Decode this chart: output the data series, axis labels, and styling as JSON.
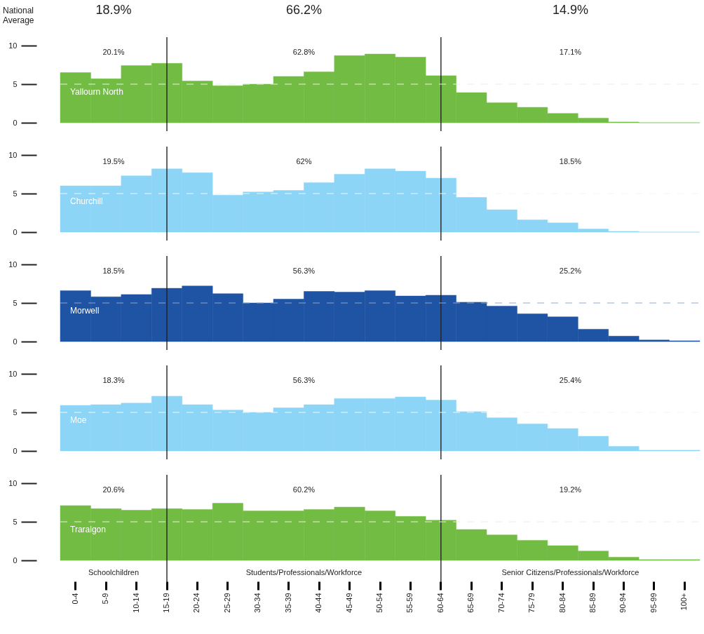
{
  "chart_data": [
    {
      "type": "bar",
      "title": "National Average",
      "categories": [
        "0-4",
        "5-9",
        "10-14",
        "15-19",
        "20-24",
        "25-29",
        "30-34",
        "35-39",
        "40-44",
        "45-49",
        "50-54",
        "55-59",
        "60-64",
        "65-69",
        "70-74",
        "75-79",
        "80-84",
        "85-89",
        "90-94",
        "95-99",
        "100+"
      ],
      "series": [
        {
          "name": "Yallourn North",
          "color": "#72bc44",
          "values": [
            6.5,
            5.7,
            7.4,
            7.7,
            5.4,
            4.8,
            5.0,
            6.0,
            6.6,
            8.7,
            8.9,
            8.5,
            6.1,
            3.9,
            2.6,
            2.0,
            1.2,
            0.6,
            0.1,
            0,
            0
          ]
        }
      ],
      "ylim": [
        0,
        10
      ],
      "yticks": [
        0,
        5,
        10
      ],
      "ref_lines": [
        {
          "axis": "x",
          "value": "15-19",
          "color": "#222222"
        },
        {
          "axis": "x",
          "value": "60-64",
          "color": "#222222"
        },
        {
          "axis": "y",
          "value": 5,
          "color": "#e8f2e0",
          "line_style": "dashed"
        }
      ],
      "annotations": [
        "18.9%",
        "66.2%",
        "14.9%",
        "20.1%",
        "62.8%",
        "17.1%"
      ],
      "tick_labels": "y"
    },
    {
      "type": "bar",
      "categories": [
        "0-4",
        "5-9",
        "10-14",
        "15-19",
        "20-24",
        "25-29",
        "30-34",
        "35-39",
        "40-44",
        "45-49",
        "50-54",
        "55-59",
        "60-64",
        "65-69",
        "70-74",
        "75-79",
        "80-84",
        "85-89",
        "90-94",
        "95-99",
        "100+"
      ],
      "series": [
        {
          "name": "Churchill",
          "color": "#8dd5f6",
          "values": [
            6.0,
            6.0,
            7.3,
            8.2,
            7.7,
            4.8,
            5.2,
            5.4,
            6.4,
            7.5,
            8.2,
            7.9,
            7.0,
            4.5,
            2.9,
            1.6,
            1.2,
            0.4,
            0.1,
            0,
            0
          ]
        }
      ],
      "ylim": [
        0,
        10
      ],
      "yticks": [
        0,
        5,
        10
      ],
      "ref_lines": [
        {
          "axis": "x",
          "value": "15-19",
          "color": "#222222"
        },
        {
          "axis": "x",
          "value": "60-64",
          "color": "#222222"
        },
        {
          "axis": "y",
          "value": 5,
          "color": "#eaf7fd",
          "line_style": "dashed"
        }
      ],
      "annotations": [
        "19.5%",
        "62%",
        "18.5%"
      ],
      "tick_labels": "y"
    },
    {
      "type": "bar",
      "categories": [
        "0-4",
        "5-9",
        "10-14",
        "15-19",
        "20-24",
        "25-29",
        "30-34",
        "35-39",
        "40-44",
        "45-49",
        "50-54",
        "55-59",
        "60-64",
        "65-69",
        "70-74",
        "75-79",
        "80-84",
        "85-89",
        "90-94",
        "95-99",
        "100+"
      ],
      "series": [
        {
          "name": "Morwell",
          "color": "#1f53a3",
          "values": [
            6.6,
            5.8,
            6.1,
            6.9,
            7.2,
            6.2,
            5.0,
            5.5,
            6.5,
            6.4,
            6.6,
            5.9,
            6.0,
            5.1,
            4.6,
            3.6,
            3.2,
            1.6,
            0.7,
            0.2,
            0.1
          ]
        }
      ],
      "ylim": [
        0,
        10
      ],
      "yticks": [
        0,
        5,
        10
      ],
      "ref_lines": [
        {
          "axis": "x",
          "value": "15-19",
          "color": "#222222"
        },
        {
          "axis": "x",
          "value": "60-64",
          "color": "#222222"
        },
        {
          "axis": "y",
          "value": 5,
          "color": "#8fa8d0",
          "line_style": "dashed"
        }
      ],
      "annotations": [
        "18.5%",
        "56.3%",
        "25.2%"
      ],
      "tick_labels": "y"
    },
    {
      "type": "bar",
      "categories": [
        "0-4",
        "5-9",
        "10-14",
        "15-19",
        "20-24",
        "25-29",
        "30-34",
        "35-39",
        "40-44",
        "45-49",
        "50-54",
        "55-59",
        "60-64",
        "65-69",
        "70-74",
        "75-79",
        "80-84",
        "85-89",
        "90-94",
        "95-99",
        "100+"
      ],
      "series": [
        {
          "name": "Moe",
          "color": "#8dd5f6",
          "values": [
            5.9,
            6.0,
            6.2,
            7.1,
            6.0,
            5.3,
            5.0,
            5.6,
            6.0,
            6.8,
            6.8,
            7.0,
            6.6,
            5.1,
            4.3,
            3.5,
            2.9,
            1.9,
            0.6,
            0.1,
            0.1
          ]
        }
      ],
      "ylim": [
        0,
        10
      ],
      "yticks": [
        0,
        5,
        10
      ],
      "ref_lines": [
        {
          "axis": "x",
          "value": "15-19",
          "color": "#222222"
        },
        {
          "axis": "x",
          "value": "60-64",
          "color": "#222222"
        },
        {
          "axis": "y",
          "value": 5,
          "color": "#eaf7fd",
          "line_style": "dashed"
        }
      ],
      "annotations": [
        "18.3%",
        "56.3%",
        "25.4%"
      ],
      "tick_labels": "y"
    },
    {
      "type": "bar",
      "categories": [
        "0-4",
        "5-9",
        "10-14",
        "15-19",
        "20-24",
        "25-29",
        "30-34",
        "35-39",
        "40-44",
        "45-49",
        "50-54",
        "55-59",
        "60-64",
        "65-69",
        "70-74",
        "75-79",
        "80-84",
        "85-89",
        "90-94",
        "95-99",
        "100+"
      ],
      "series": [
        {
          "name": "Traralgon",
          "color": "#72bc44",
          "values": [
            7.1,
            6.7,
            6.5,
            6.7,
            6.6,
            7.4,
            6.4,
            6.4,
            6.6,
            6.9,
            6.4,
            5.7,
            5.2,
            4.0,
            3.3,
            2.6,
            1.9,
            1.2,
            0.4,
            0.1,
            0.1
          ]
        }
      ],
      "ylim": [
        0,
        10
      ],
      "yticks": [
        0,
        5,
        10
      ],
      "ref_lines": [
        {
          "axis": "x",
          "value": "15-19",
          "color": "#222222"
        },
        {
          "axis": "x",
          "value": "60-64",
          "color": "#222222"
        },
        {
          "axis": "y",
          "value": 5,
          "color": "#e8f2e0",
          "line_style": "dashed"
        }
      ],
      "annotations": [
        "20.6%",
        "60.2%",
        "19.2%",
        "Schoolchildren",
        "Students/Professionals/Workforce",
        "Senior Citizens/Professionals/Workforce"
      ]
    }
  ]
}
